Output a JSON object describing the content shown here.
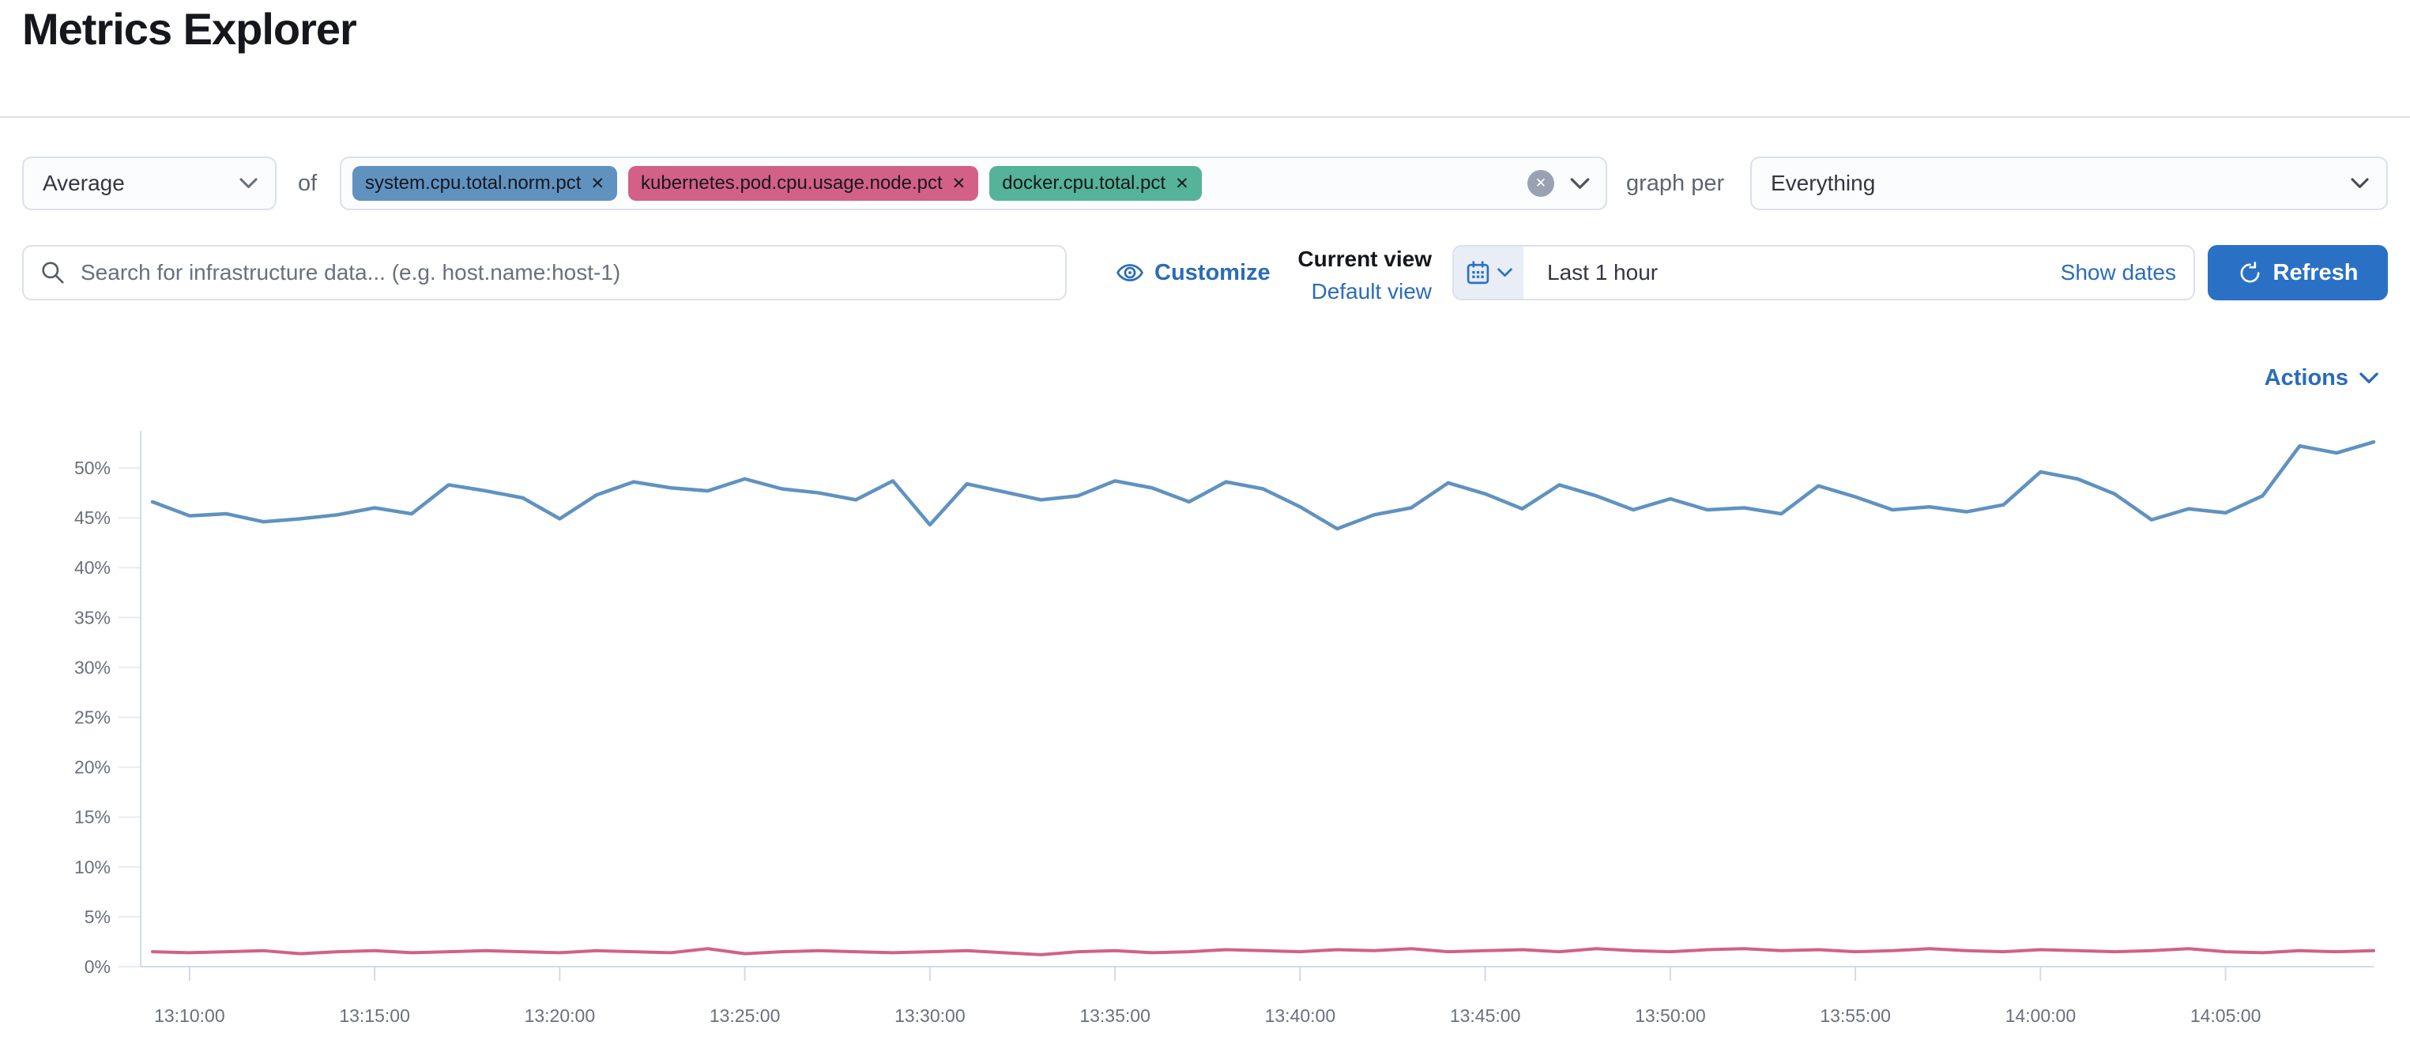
{
  "page": {
    "title": "Metrics Explorer"
  },
  "toolbar": {
    "aggregation_select": {
      "value": "Average"
    },
    "of_label": "of",
    "metrics_combobox": {
      "pills": [
        {
          "label": "system.cpu.total.norm.pct",
          "color": "#6092C0",
          "remove_icon": "✕"
        },
        {
          "label": "kubernetes.pod.cpu.usage.node.pct",
          "color": "#D36086",
          "remove_icon": "✕"
        },
        {
          "label": "docker.cpu.total.pct",
          "color": "#54B399",
          "remove_icon": "✕"
        }
      ],
      "clear_icon": "✕"
    },
    "graph_per_label": "graph per",
    "graph_per_select": {
      "value": "Everything"
    }
  },
  "search": {
    "placeholder": "Search for infrastructure data... (e.g. host.name:host-1)"
  },
  "view_controls": {
    "customize_label": "Customize",
    "current_view_label": "Current view",
    "default_view_link": "Default view"
  },
  "time_picker": {
    "range_value": "Last 1 hour",
    "show_dates_label": "Show dates",
    "refresh_label": "Refresh"
  },
  "actions_menu": {
    "label": "Actions"
  },
  "colors": {
    "link_blue": "#2b6cb8",
    "button_blue": "#2a71c6",
    "axis_text": "#69707d",
    "axis_line": "#d3dae6"
  },
  "chart_data": {
    "type": "line",
    "title": "",
    "xlabel": "",
    "ylabel": "",
    "y_unit": "%",
    "ylim": [
      0,
      53.7
    ],
    "grid": "tick-stubs-only",
    "legend": "none",
    "y_ticks": [
      0,
      5,
      10,
      15,
      20,
      25,
      30,
      35,
      40,
      45,
      50
    ],
    "x_tick_labels": [
      "13:10:00",
      "13:15:00",
      "13:20:00",
      "13:25:00",
      "13:30:00",
      "13:35:00",
      "13:40:00",
      "13:45:00",
      "13:50:00",
      "13:55:00",
      "14:00:00",
      "14:05:00"
    ],
    "x": [
      "13:09:00",
      "13:10:00",
      "13:11:00",
      "13:12:00",
      "13:13:00",
      "13:14:00",
      "13:15:00",
      "13:16:00",
      "13:17:00",
      "13:18:00",
      "13:19:00",
      "13:20:00",
      "13:21:00",
      "13:22:00",
      "13:23:00",
      "13:24:00",
      "13:25:00",
      "13:26:00",
      "13:27:00",
      "13:28:00",
      "13:29:00",
      "13:30:00",
      "13:31:00",
      "13:32:00",
      "13:33:00",
      "13:34:00",
      "13:35:00",
      "13:36:00",
      "13:37:00",
      "13:38:00",
      "13:39:00",
      "13:40:00",
      "13:41:00",
      "13:42:00",
      "13:43:00",
      "13:44:00",
      "13:45:00",
      "13:46:00",
      "13:47:00",
      "13:48:00",
      "13:49:00",
      "13:50:00",
      "13:51:00",
      "13:52:00",
      "13:53:00",
      "13:54:00",
      "13:55:00",
      "13:56:00",
      "13:57:00",
      "13:58:00",
      "13:59:00",
      "14:00:00",
      "14:01:00",
      "14:02:00",
      "14:03:00",
      "14:04:00",
      "14:05:00",
      "14:06:00",
      "14:07:00",
      "14:08:00",
      "14:09:00"
    ],
    "series": [
      {
        "name": "system.cpu.total.norm.pct (avg)",
        "color": "#6092C0",
        "values": [
          46.6,
          45.2,
          45.4,
          44.6,
          44.9,
          45.3,
          46.0,
          45.4,
          48.3,
          47.7,
          47.0,
          44.9,
          47.3,
          48.6,
          48.0,
          47.7,
          48.9,
          47.9,
          47.5,
          46.8,
          48.7,
          44.3,
          48.4,
          47.6,
          46.8,
          47.2,
          48.7,
          48.0,
          46.6,
          48.6,
          47.9,
          46.1,
          43.9,
          45.3,
          46.0,
          48.5,
          47.4,
          45.9,
          48.3,
          47.2,
          45.8,
          46.9,
          45.8,
          46.0,
          45.4,
          48.2,
          47.1,
          45.8,
          46.1,
          45.6,
          46.3,
          49.6,
          48.9,
          47.4,
          44.8,
          45.9,
          45.5,
          47.2,
          52.2,
          51.5,
          52.6
        ]
      },
      {
        "name": "kubernetes.pod.cpu.usage.node.pct (avg)",
        "color": "#D36086",
        "values": [
          1.5,
          1.4,
          1.5,
          1.6,
          1.3,
          1.5,
          1.6,
          1.4,
          1.5,
          1.6,
          1.5,
          1.4,
          1.6,
          1.5,
          1.4,
          1.8,
          1.3,
          1.5,
          1.6,
          1.5,
          1.4,
          1.5,
          1.6,
          1.4,
          1.2,
          1.5,
          1.6,
          1.4,
          1.5,
          1.7,
          1.6,
          1.5,
          1.7,
          1.6,
          1.8,
          1.5,
          1.6,
          1.7,
          1.5,
          1.8,
          1.6,
          1.5,
          1.7,
          1.8,
          1.6,
          1.7,
          1.5,
          1.6,
          1.8,
          1.6,
          1.5,
          1.7,
          1.6,
          1.5,
          1.6,
          1.8,
          1.5,
          1.4,
          1.6,
          1.5,
          1.6
        ]
      }
    ]
  }
}
